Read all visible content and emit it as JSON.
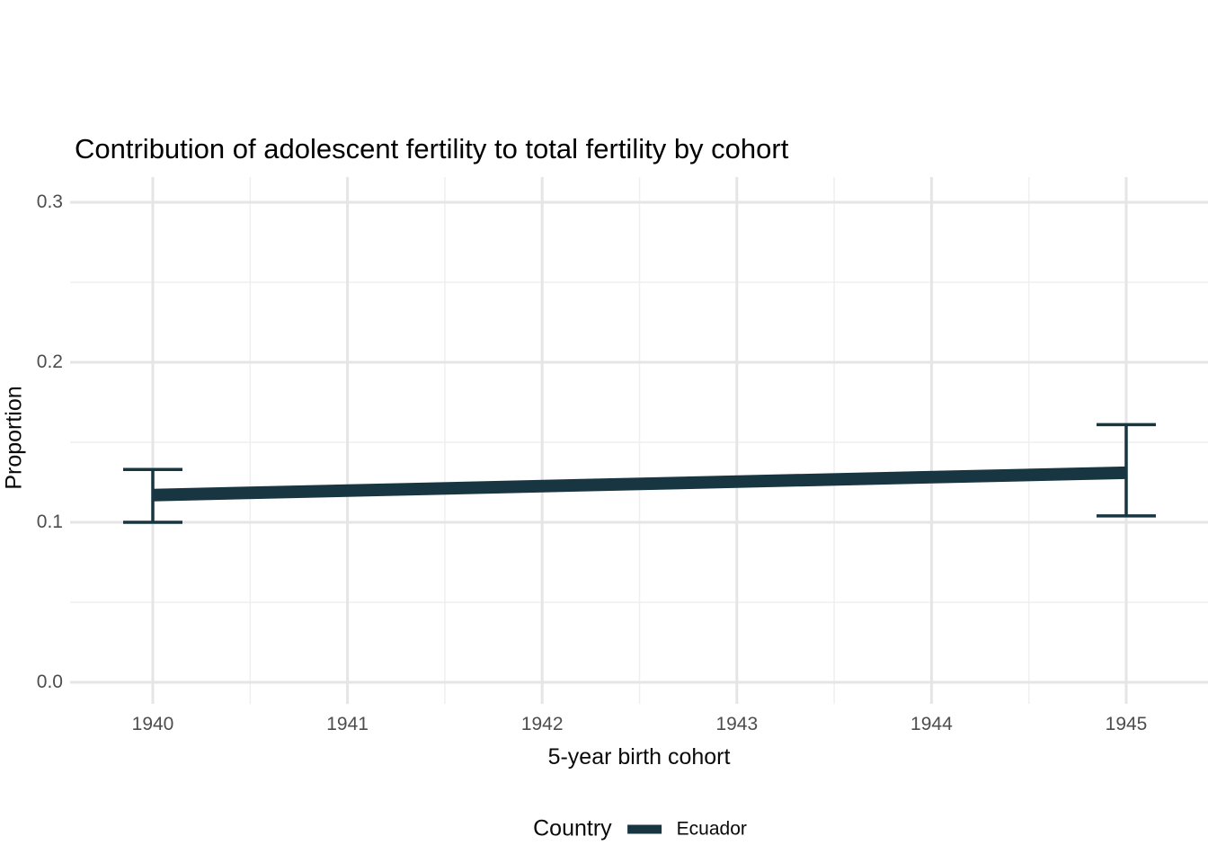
{
  "title": "Contribution of adolescent fertility to total fertility by cohort",
  "colors": {
    "series": "#173641",
    "grid_major": "#e5e5e5",
    "grid_minor": "#efefef",
    "tick_text": "#4d4d4d",
    "text": "#0a0a0a",
    "background": "#ffffff"
  },
  "legend": {
    "title": "Country",
    "items": [
      {
        "label": "Ecuador",
        "color": "#173641",
        "key": "line-swatch"
      }
    ],
    "position": "bottom"
  },
  "chart_data": {
    "type": "line",
    "title": "Contribution of adolescent fertility to total fertility by cohort",
    "xlabel": "5-year birth cohort",
    "ylabel": "Proportion",
    "grid": true,
    "legend_position": "bottom",
    "x_ticks": [
      1940,
      1941,
      1942,
      1943,
      1944,
      1945
    ],
    "x_tick_labels": [
      "1940",
      "1941",
      "1942",
      "1943",
      "1944",
      "1945"
    ],
    "x_minor_ticks": [
      1940.5,
      1941.5,
      1942.5,
      1943.5,
      1944.5
    ],
    "y_ticks": [
      0.0,
      0.1,
      0.2,
      0.3
    ],
    "y_tick_labels": [
      "0.0",
      "0.1",
      "0.2",
      "0.3"
    ],
    "y_minor_ticks": [
      0.05,
      0.15,
      0.25
    ],
    "xlim": [
      1939.575,
      1945.425
    ],
    "ylim": [
      -0.0135,
      0.3157
    ],
    "series": [
      {
        "name": "Ecuador",
        "color": "#173641",
        "x": [
          1940,
          1945
        ],
        "y": [
          0.117,
          0.131
        ],
        "ci_low": [
          0.1,
          0.104
        ],
        "ci_high": [
          0.133,
          0.161
        ]
      }
    ]
  }
}
